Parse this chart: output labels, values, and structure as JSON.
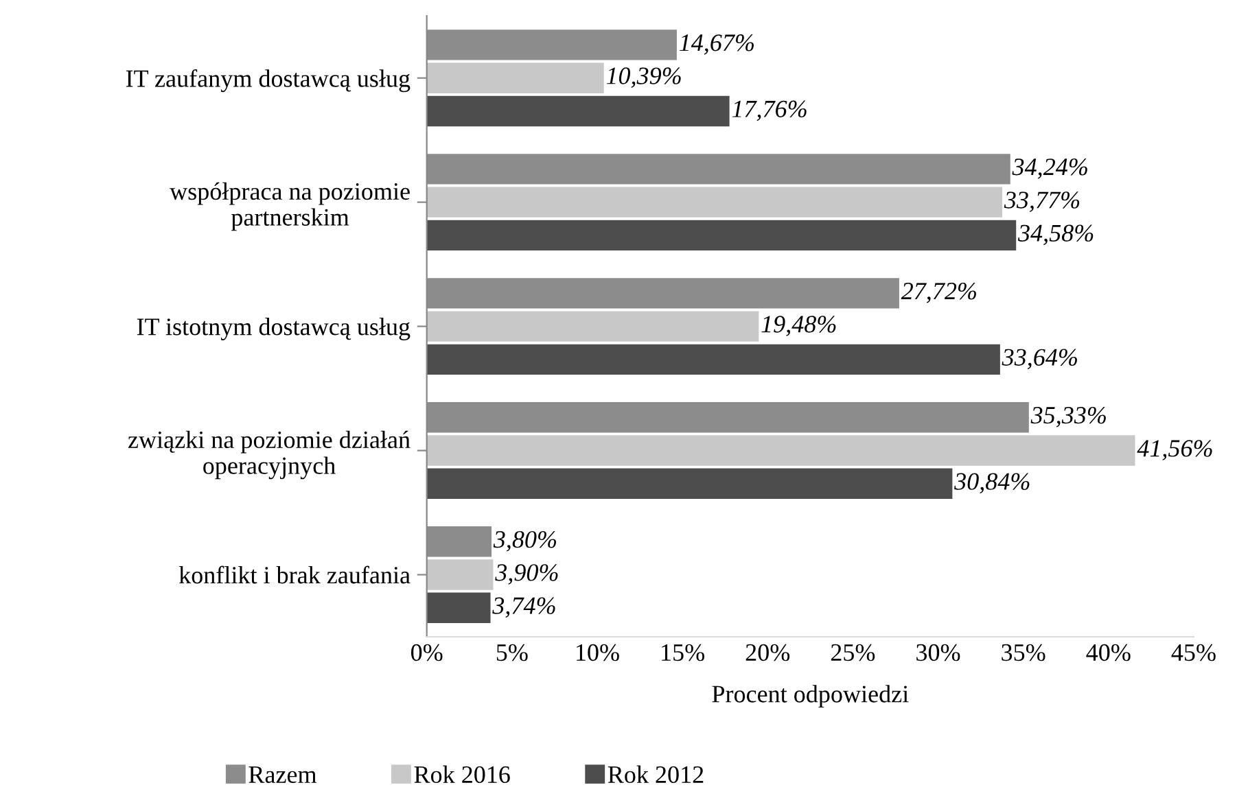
{
  "chart_data": {
    "type": "bar",
    "orientation": "horizontal",
    "xlabel": "Procent odpowiedzi",
    "categories": [
      "IT zaufanym dostawcą usług",
      "współpraca na poziomie\npartnerskim",
      "IT istotnym dostawcą usług",
      "związki na poziomie działań\noperacyjnych",
      "konflikt i brak zaufania"
    ],
    "series": [
      {
        "name": "Razem",
        "color": "#8c8c8c",
        "values": [
          14.67,
          34.24,
          27.72,
          35.33,
          3.8
        ],
        "value_labels": [
          "14,67%",
          "34,24%",
          "27,72%",
          "35,33%",
          "3,80%"
        ]
      },
      {
        "name": "Rok 2016",
        "color": "#c8c8c8",
        "values": [
          10.39,
          33.77,
          19.48,
          41.56,
          3.9
        ],
        "value_labels": [
          "10,39%",
          "33,77%",
          "19,48%",
          "41,56%",
          "3,90%"
        ]
      },
      {
        "name": "Rok 2012",
        "color": "#4d4d4d",
        "values": [
          17.76,
          34.58,
          33.64,
          30.84,
          3.74
        ],
        "value_labels": [
          "17,76%",
          "34,58%",
          "33,64%",
          "30,84%",
          "3,74%"
        ]
      }
    ],
    "xlim": [
      0,
      45
    ],
    "xticks": [
      {
        "value": 0,
        "label": "0%"
      },
      {
        "value": 5,
        "label": "5%"
      },
      {
        "value": 10,
        "label": "10%"
      },
      {
        "value": 15,
        "label": "15%"
      },
      {
        "value": 20,
        "label": "20%"
      },
      {
        "value": 25,
        "label": "25%"
      },
      {
        "value": 30,
        "label": "30%"
      },
      {
        "value": 35,
        "label": "35%"
      },
      {
        "value": 40,
        "label": "40%"
      },
      {
        "value": 45,
        "label": "45%"
      }
    ],
    "grid": false,
    "legend": "bottom"
  }
}
